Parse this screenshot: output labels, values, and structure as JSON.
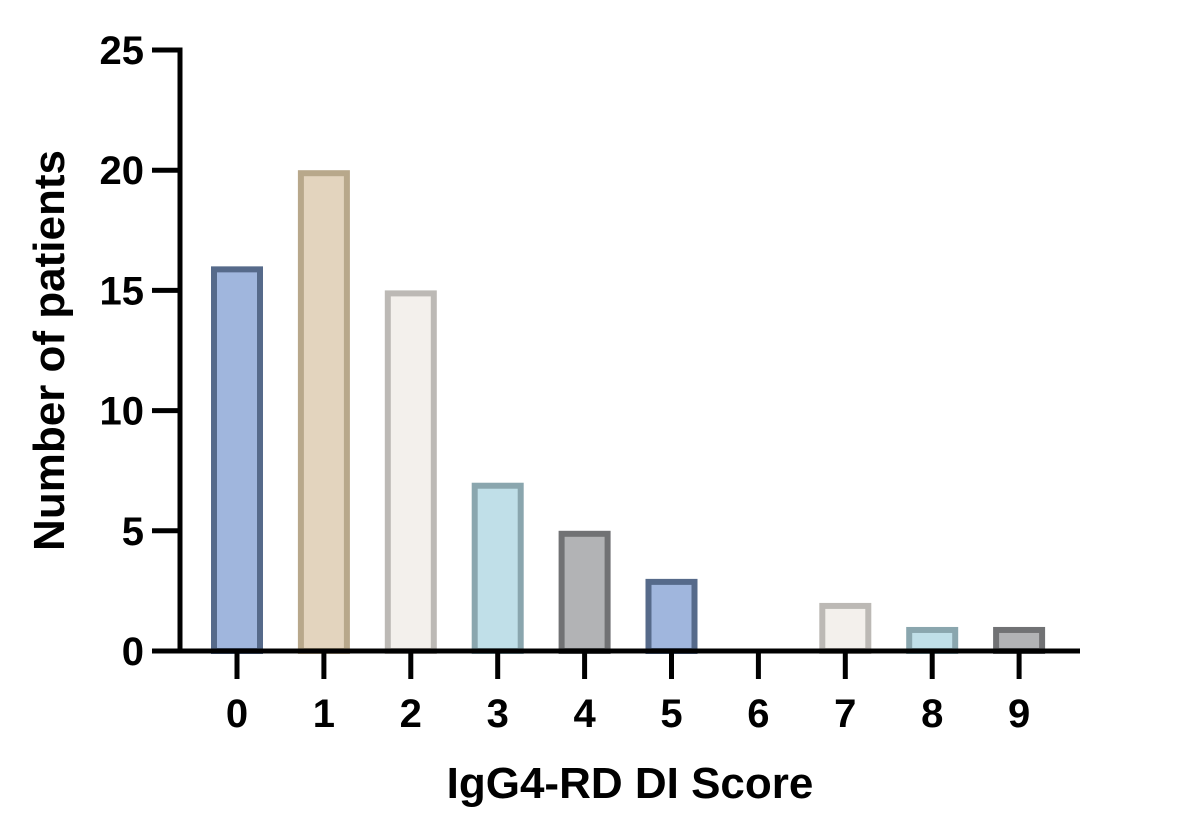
{
  "chart_data": {
    "type": "bar",
    "title": "",
    "xlabel": "IgG4-RD DI Score",
    "ylabel": "Number of patients",
    "categories": [
      "0",
      "1",
      "2",
      "3",
      "4",
      "5",
      "6",
      "7",
      "8",
      "9"
    ],
    "values": [
      16,
      20,
      15,
      7,
      5,
      3,
      0,
      2,
      1,
      1
    ],
    "ylim": [
      0,
      25
    ],
    "yticks": [
      0,
      5,
      10,
      15,
      20,
      25
    ],
    "grid": false,
    "legend": "none",
    "bar_colors": [
      {
        "fill": "#a0b6dd",
        "stroke": "#566a8a"
      },
      {
        "fill": "#e3d4be",
        "stroke": "#b8a88b"
      },
      {
        "fill": "#f3f0ec",
        "stroke": "#bcb9b5"
      },
      {
        "fill": "#c0dfe8",
        "stroke": "#8aa6ae"
      },
      {
        "fill": "#b2b3b5",
        "stroke": "#717274"
      },
      {
        "fill": "#a0b6dd",
        "stroke": "#566a8a"
      },
      {
        "fill": "#e3d4be",
        "stroke": "#b8a88b"
      },
      {
        "fill": "#f3f0ec",
        "stroke": "#bcb9b5"
      },
      {
        "fill": "#c0dfe8",
        "stroke": "#8aa6ae"
      },
      {
        "fill": "#b2b3b5",
        "stroke": "#717274"
      }
    ]
  }
}
